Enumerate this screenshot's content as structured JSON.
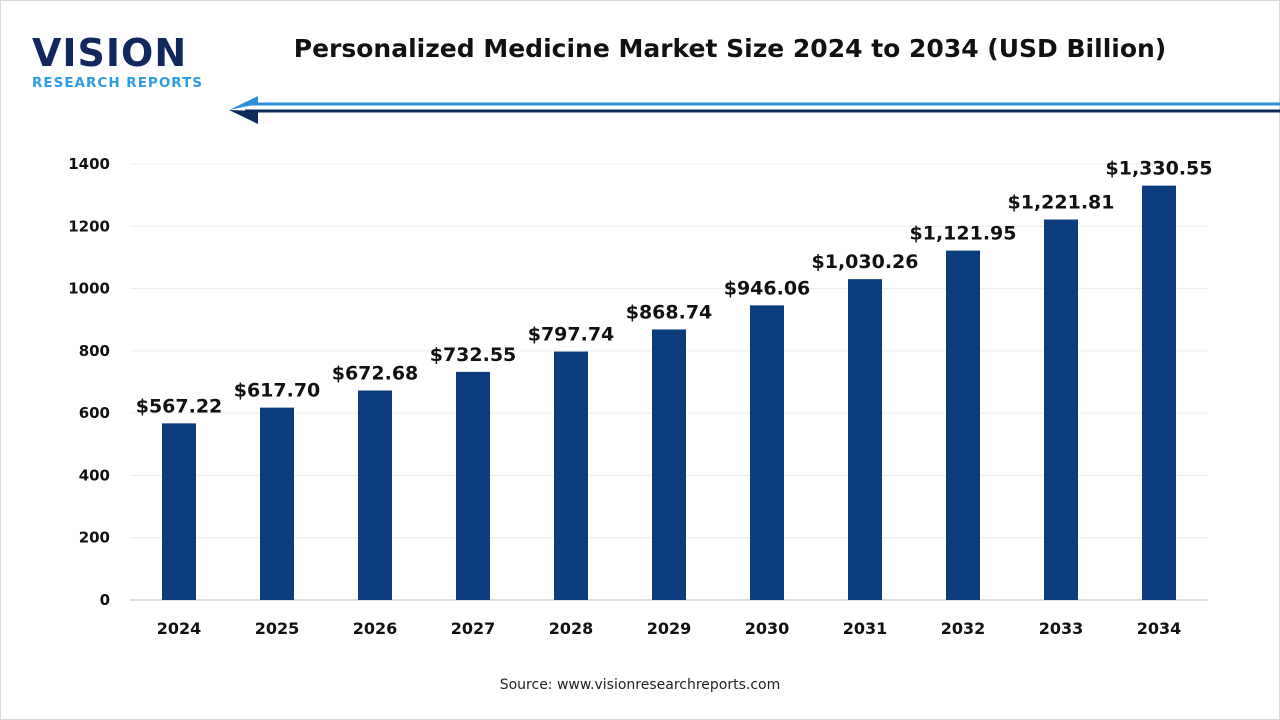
{
  "logo": {
    "main": "VISION",
    "sub": "RESEARCH REPORTS"
  },
  "source": "Source: www.visionresearchreports.com",
  "colors": {
    "bar": "#0b3d7e",
    "accent_light": "#2b8fdb",
    "accent_dark": "#0c2a5c"
  },
  "chart_data": {
    "type": "bar",
    "title": "Personalized Medicine Market Size 2024 to 2034 (USD Billion)",
    "categories": [
      "2024",
      "2025",
      "2026",
      "2027",
      "2028",
      "2029",
      "2030",
      "2031",
      "2032",
      "2033",
      "2034"
    ],
    "values": [
      567.22,
      617.7,
      672.68,
      732.55,
      797.74,
      868.74,
      946.06,
      1030.26,
      1121.95,
      1221.81,
      1330.55
    ],
    "data_labels": [
      "$567.22",
      "$617.70",
      "$672.68",
      "$732.55",
      "$797.74",
      "$868.74",
      "$946.06",
      "$1,030.26",
      "$1,121.95",
      "$1,221.81",
      "$1,330.55"
    ],
    "xlabel": "",
    "ylabel": "",
    "ylim": [
      0,
      1400
    ],
    "yticks": [
      0,
      200,
      400,
      600,
      800,
      1000,
      1200,
      1400
    ],
    "grid": true,
    "legend": "none"
  }
}
